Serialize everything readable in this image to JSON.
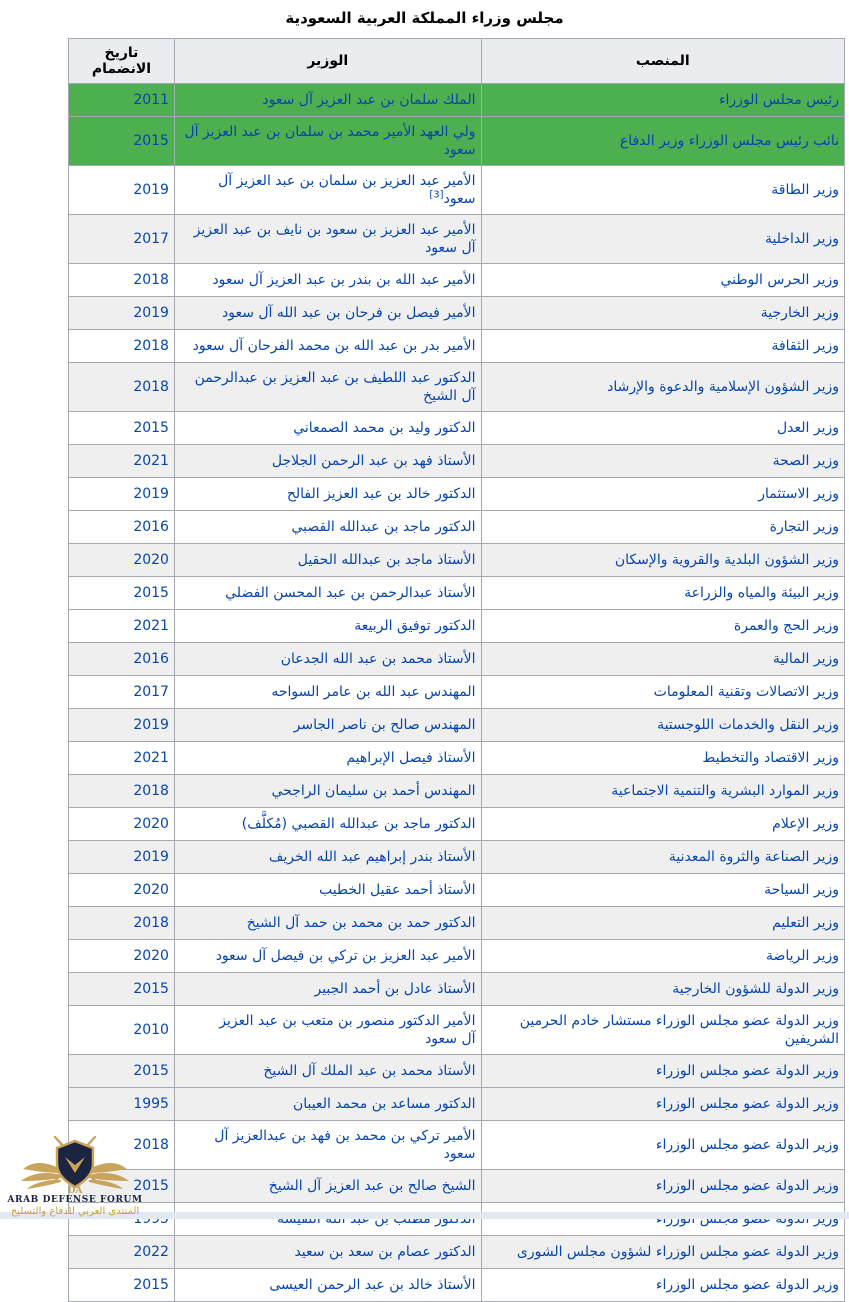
{
  "title": "مجلس وزراء المملكة العربية السعودية",
  "table": {
    "headers": [
      "المنصب",
      "الوزير",
      "تاريخ الانضمام"
    ],
    "rows": [
      {
        "position": "رئيس مجلس الوزراء",
        "minister": "الملك سلمان بن عبد العزيز آل سعود",
        "join_year": "2011",
        "shade": "green"
      },
      {
        "position": "نائب رئيس مجلس الوزراء وزير الدفاع",
        "minister": "ولي العهد الأمير محمد بن سلمان بن عبد العزيز آل سعود",
        "join_year": "2015",
        "shade": "green"
      },
      {
        "position": "وزير الطاقة",
        "minister": "الأمير عبد العزيز بن سلمان بن عبد العزيز آل سعود",
        "note": "[3]",
        "join_year": "2019",
        "shade": "white"
      },
      {
        "position": "وزير الداخلية",
        "minister": "الأمير عبد العزيز بن سعود بن نايف بن عبد العزيز آل سعود",
        "join_year": "2017",
        "shade": "gray"
      },
      {
        "position": "وزير الحرس الوطني",
        "minister": "الأمير عبد الله بن بندر بن عبد العزيز آل سعود",
        "join_year": "2018",
        "shade": "white"
      },
      {
        "position": "وزير الخارجية",
        "minister": "الأمير فيصل بن فرحان بن عبد الله آل سعود",
        "join_year": "2019",
        "shade": "gray"
      },
      {
        "position": "وزير الثقافة",
        "minister": "الأمير بدر بن عبد الله بن محمد الفرحان آل سعود",
        "join_year": "2018",
        "shade": "white"
      },
      {
        "position": "وزير الشؤون الإسلامية والدعوة والإرشاد",
        "minister": "الدكتور عبد اللطيف بن عبد العزيز بن عبدالرحمن آل الشيخ",
        "join_year": "2018",
        "shade": "gray"
      },
      {
        "position": "وزير العدل",
        "minister": "الدكتور وليد بن محمد الصمعاني",
        "join_year": "2015",
        "shade": "white"
      },
      {
        "position": "وزير الصحة",
        "minister": "الأستاذ فهد بن عبد الرحمن الجلاجل",
        "join_year": "2021",
        "shade": "gray"
      },
      {
        "position": "وزير الاستثمار",
        "minister": "الدكتور خالد بن عبد العزيز الفالح",
        "join_year": "2019",
        "shade": "white"
      },
      {
        "position": "وزير التجارة",
        "minister": "الدكتور ماجد بن عبدالله القصبي",
        "join_year": "2016",
        "shade": "white"
      },
      {
        "position": "وزير الشؤون البلدية والقروية والإسكان",
        "minister": "الأستاذ ماجد بن عبدالله الحقيل",
        "join_year": "2020",
        "shade": "gray"
      },
      {
        "position": "وزير البيئة والمياه والزراعة",
        "minister": "الأستاذ عبدالرحمن بن عبد المحسن الفضلي",
        "join_year": "2015",
        "shade": "white"
      },
      {
        "position": "وزير الحج والعمرة",
        "minister": "الدكتور توفيق الربيعة",
        "join_year": "2021",
        "shade": "white"
      },
      {
        "position": "وزير المالية",
        "minister": "الأستاذ محمد بن عبد الله الجدعان",
        "join_year": "2016",
        "shade": "gray"
      },
      {
        "position": "وزير الاتصالات وتقنية المعلومات",
        "minister": "المهندس عبد الله بن عامر السواحه",
        "join_year": "2017",
        "shade": "white"
      },
      {
        "position": "وزير النقل والخدمات اللوجستية",
        "minister": "المهندس صالح بن ناصر الجاسر",
        "join_year": "2019",
        "shade": "gray"
      },
      {
        "position": "وزير الاقتصاد والتخطيط",
        "minister": "الأستاذ فيصل الإبراهيم",
        "join_year": "2021",
        "shade": "white"
      },
      {
        "position": "وزير الموارد البشرية والتنمية الاجتماعية",
        "minister": "المهندس أحمد بن سليمان الراجحي",
        "join_year": "2018",
        "shade": "gray"
      },
      {
        "position": "وزير الإعلام",
        "minister": "الدكتور ماجد بن عبدالله القصبي (مُكلَّف)",
        "join_year": "2020",
        "shade": "white"
      },
      {
        "position": "وزير الصناعة والثروة المعدنية",
        "minister": "الأستاذ بندر إبراهيم عبد الله الخريف",
        "join_year": "2019",
        "shade": "gray"
      },
      {
        "position": "وزير السياحة",
        "minister": "الأستاذ أحمد عقيل الخطيب",
        "join_year": "2020",
        "shade": "white"
      },
      {
        "position": "وزير التعليم",
        "minister": "الدكتور حمد بن محمد بن حمد آل الشيخ",
        "join_year": "2018",
        "shade": "gray"
      },
      {
        "position": "وزير الرياضة",
        "minister": "الأمير عبد العزيز بن تركي بن فيصل آل سعود",
        "join_year": "2020",
        "shade": "white"
      },
      {
        "position": "وزير الدولة للشؤون الخارجية",
        "minister": "الأستاذ عادل بن أحمد الجبير",
        "join_year": "2015",
        "shade": "gray"
      },
      {
        "position": "وزير الدولة عضو مجلس الوزراء مستشار خادم الحرمين الشريفين",
        "minister": "الأمير الدكتور منصور بن متعب بن عبد العزيز\nآل سعود",
        "join_year": "2010",
        "shade": "white"
      },
      {
        "position": "وزير الدولة عضو مجلس الوزراء",
        "minister": "الأستاذ محمد بن عبد الملك آل الشيخ",
        "join_year": "2015",
        "shade": "gray"
      },
      {
        "position": "وزير الدولة عضو مجلس الوزراء",
        "minister": "الدكتور مساعد بن محمد العيبان",
        "join_year": "1995",
        "shade": "gray"
      },
      {
        "position": "وزير الدولة عضو مجلس الوزراء",
        "minister": "الأمير تركي بن محمد بن فهد بن عبدالعزيز آل سعود",
        "join_year": "2018",
        "shade": "white"
      },
      {
        "position": "وزير الدولة عضو مجلس الوزراء",
        "minister": "الشيخ صالح بن عبد العزيز آل الشيخ",
        "join_year": "2015",
        "shade": "gray"
      },
      {
        "position": "وزير الدولة عضو مجلس الوزراء",
        "minister": "الدكتور مطلب بن عبد الله النفيسة",
        "join_year": "1995",
        "shade": "white"
      },
      {
        "position": "وزير الدولة عضو مجلس الوزراء لشؤون مجلس الشورى",
        "minister": "الدكتور عصام بن سعد بن سعيد",
        "join_year": "2022",
        "shade": "gray"
      },
      {
        "position": "وزير الدولة عضو مجلس الوزراء",
        "minister": "الأستاذ خالد بن عبد الرحمن العيسى",
        "join_year": "2015",
        "shade": "white"
      }
    ]
  },
  "watermark": {
    "english": "ARAB DEFENSE FORUM",
    "arabic": "المنتدى العربي للدفاع والتسليح",
    "monogram": "DA"
  },
  "colors": {
    "leadership_row_green": "#4caf50",
    "alt_row_gray": "#efefef",
    "header_gray": "#eaecf0",
    "table_border": "#a2a9b1",
    "link_blue": "#0645ad",
    "logo_gold": "#c9a45c",
    "logo_navy": "#1b2440"
  }
}
